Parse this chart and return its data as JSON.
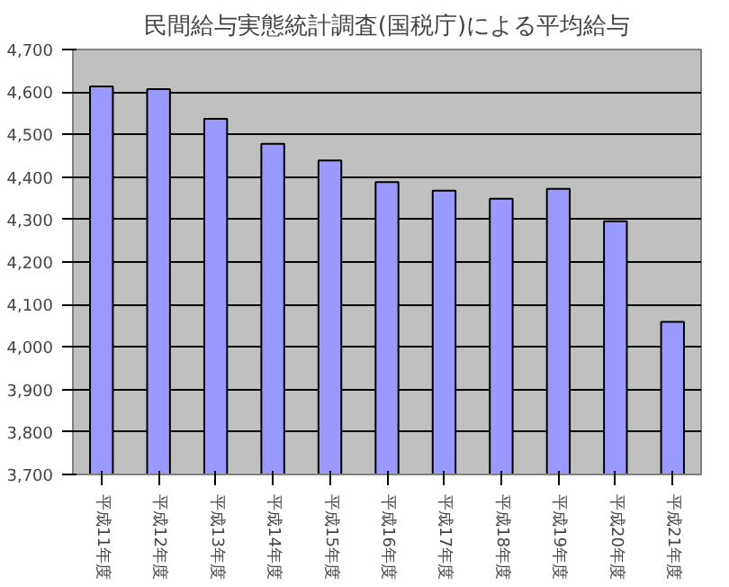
{
  "chart_data": {
    "type": "bar",
    "title": "民間給与実態統計調査(国税庁)による平均給与",
    "categories": [
      "平成11年度",
      "平成12年度",
      "平成13年度",
      "平成14年度",
      "平成15年度",
      "平成16年度",
      "平成17年度",
      "平成18年度",
      "平成19年度",
      "平成20年度",
      "平成21年度"
    ],
    "values": [
      4613,
      4607,
      4537,
      4478,
      4439,
      4388,
      4368,
      4349,
      4372,
      4296,
      4059
    ],
    "color": "#9999ff",
    "ylim": [
      3700,
      4700
    ],
    "yticks": [
      {
        "value": 3700,
        "label": "3,700"
      },
      {
        "value": 3800,
        "label": "3,800"
      },
      {
        "value": 3900,
        "label": "3,900"
      },
      {
        "value": 4000,
        "label": "4,000"
      },
      {
        "value": 4100,
        "label": "4,100"
      },
      {
        "value": 4200,
        "label": "4,200"
      },
      {
        "value": 4300,
        "label": "4,300"
      },
      {
        "value": 4400,
        "label": "4,400"
      },
      {
        "value": 4500,
        "label": "4,500"
      },
      {
        "value": 4600,
        "label": "4,600"
      },
      {
        "value": 4700,
        "label": "4,700"
      }
    ],
    "grid": "y"
  }
}
